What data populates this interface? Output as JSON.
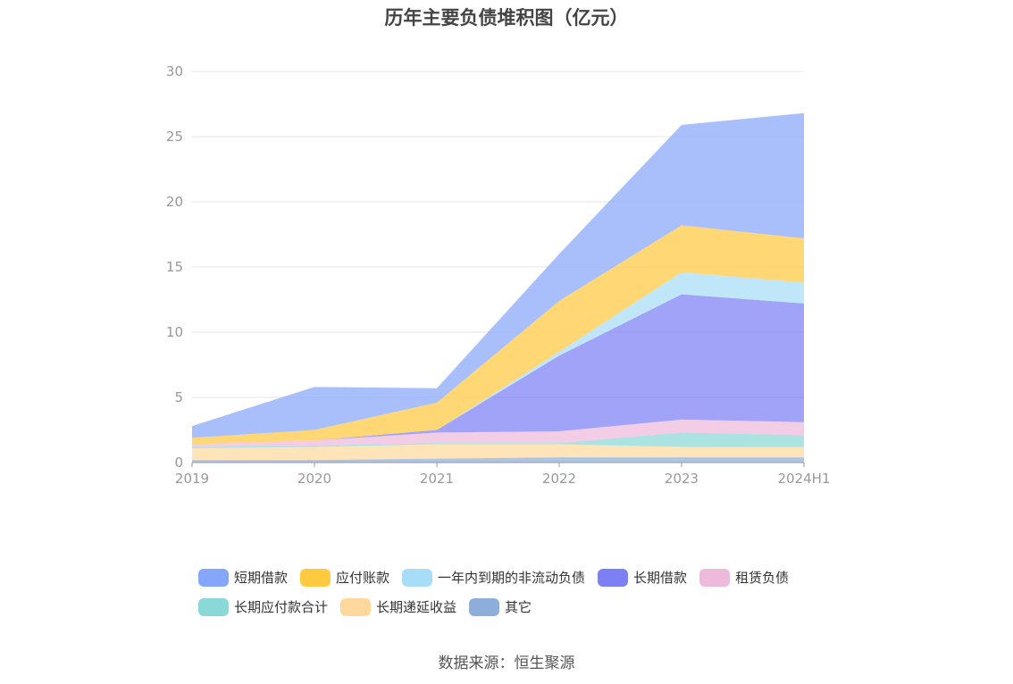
{
  "chart_data": {
    "type": "area",
    "stacked": true,
    "title": "历年主要负债堆积图（亿元）",
    "x": [
      "2019",
      "2020",
      "2021",
      "2022",
      "2023",
      "2024H1"
    ],
    "ylim": [
      0,
      30
    ],
    "yticks": [
      0,
      5,
      10,
      15,
      20,
      25,
      30
    ],
    "grid": true,
    "legend_position": "bottom",
    "series": [
      {
        "name": "其它",
        "color": "#8EADDA",
        "values": [
          0.2,
          0.2,
          0.3,
          0.4,
          0.4,
          0.4
        ]
      },
      {
        "name": "长期递延收益",
        "color": "#FFD89E",
        "values": [
          0.9,
          1.0,
          1.1,
          1.0,
          0.8,
          0.8
        ]
      },
      {
        "name": "长期应付款合计",
        "color": "#8AD8D8",
        "values": [
          0.1,
          0.1,
          0.1,
          0.1,
          1.1,
          0.9
        ]
      },
      {
        "name": "租赁负债",
        "color": "#EDBADB",
        "values": [
          0.2,
          0.4,
          0.8,
          0.9,
          1.0,
          1.0
        ]
      },
      {
        "name": "长期借款",
        "color": "#7C80F4",
        "values": [
          0.0,
          0.0,
          0.2,
          5.8,
          9.6,
          9.1
        ]
      },
      {
        "name": "一年内到期的非流动负债",
        "color": "#A8DDF8",
        "values": [
          0.0,
          0.0,
          0.0,
          0.3,
          1.7,
          1.6
        ]
      },
      {
        "name": "应付账款",
        "color": "#FFC940",
        "values": [
          0.5,
          0.8,
          2.1,
          3.9,
          3.6,
          3.4
        ]
      },
      {
        "name": "短期借款",
        "color": "#86A6FB",
        "values": [
          0.9,
          3.3,
          1.1,
          3.6,
          7.7,
          9.6
        ]
      }
    ],
    "legend_order": [
      "短期借款",
      "应付账款",
      "一年内到期的非流动负债",
      "长期借款",
      "租赁负债",
      "长期应付款合计",
      "长期递延收益",
      "其它"
    ]
  },
  "source": "数据来源：恒生聚源"
}
